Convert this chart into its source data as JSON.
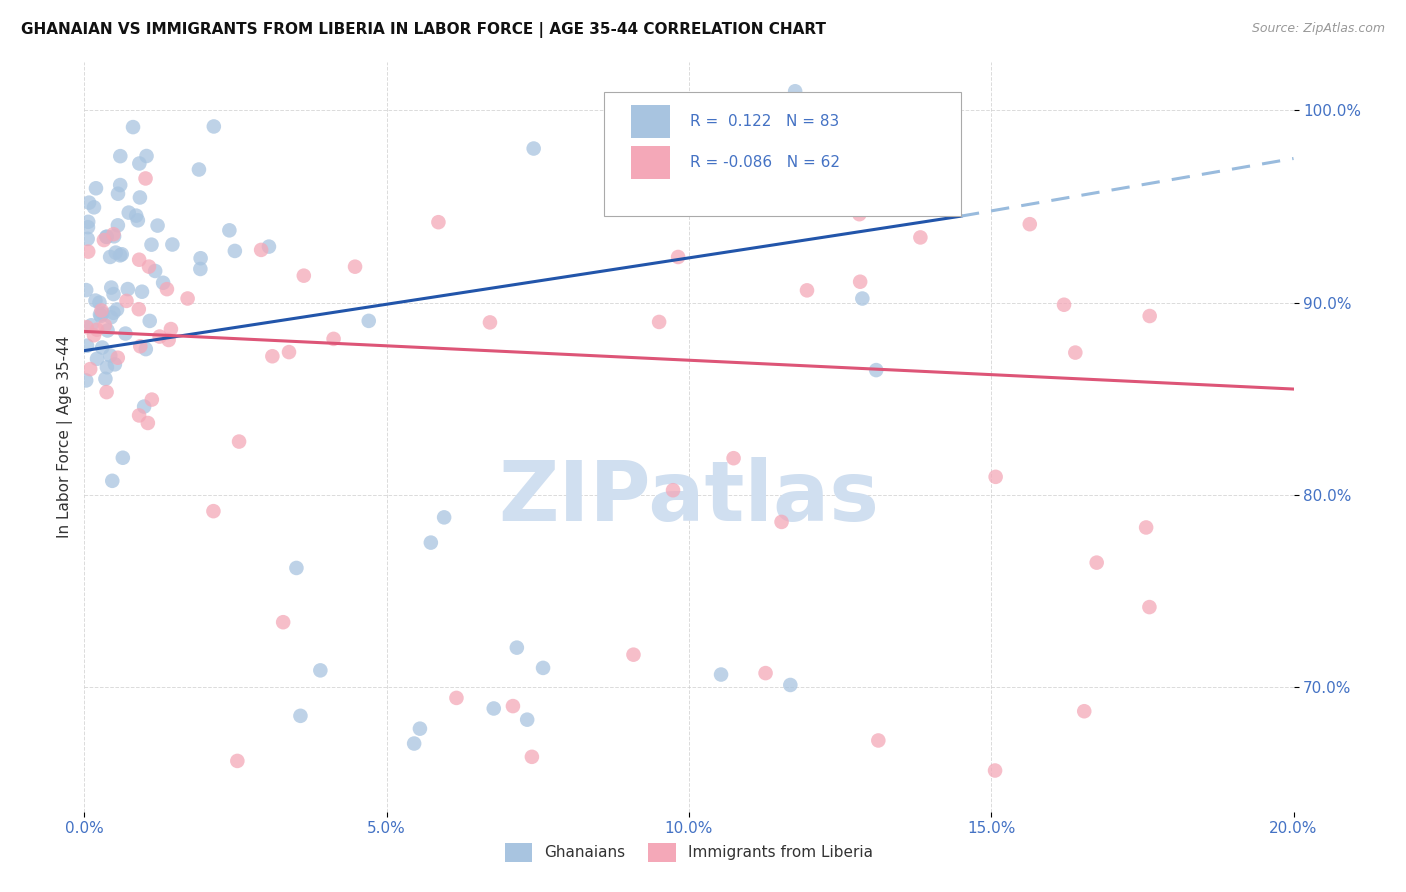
{
  "title": "GHANAIAN VS IMMIGRANTS FROM LIBERIA IN LABOR FORCE | AGE 35-44 CORRELATION CHART",
  "source": "Source: ZipAtlas.com",
  "ylabel": "In Labor Force | Age 35-44",
  "ytick_labels": [
    "70.0%",
    "80.0%",
    "90.0%",
    "100.0%"
  ],
  "ytick_values": [
    0.7,
    0.8,
    0.9,
    1.0
  ],
  "xlim": [
    0.0,
    0.2
  ],
  "ylim": [
    0.635,
    1.025
  ],
  "r_ghanaian": 0.122,
  "n_ghanaian": 83,
  "r_liberia": -0.086,
  "n_liberia": 62,
  "color_ghanaian": "#a8c4e0",
  "color_liberia": "#f4a8b8",
  "trendline_ghanaian_solid_color": "#2255aa",
  "trendline_ghanaian_dash_color": "#99bbdd",
  "trendline_liberia_color": "#dd5577",
  "watermark_text": "ZIPatlas",
  "watermark_color": "#d0dff0",
  "legend_label_ghanaian": "Ghanaians",
  "legend_label_liberia": "Immigrants from Liberia",
  "trendline_g_x0": 0.0,
  "trendline_g_y0": 0.875,
  "trendline_g_x1": 0.145,
  "trendline_g_y1": 0.945,
  "trendline_g_dash_x1": 0.2,
  "trendline_g_dash_y1": 0.975,
  "trendline_l_x0": 0.0,
  "trendline_l_y0": 0.885,
  "trendline_l_x1": 0.2,
  "trendline_l_y1": 0.855,
  "dot_size": 110,
  "dot_alpha": 0.75,
  "grid_color": "#cccccc",
  "grid_alpha": 0.7,
  "grid_linestyle": "--",
  "xtick_values": [
    0.0,
    0.05,
    0.1,
    0.15,
    0.2
  ],
  "xtick_labels": [
    "0.0%",
    "5.0%",
    "10.0%",
    "15.0%",
    "20.0%"
  ],
  "tick_color": "#4472c4",
  "bg_color": "#ffffff"
}
